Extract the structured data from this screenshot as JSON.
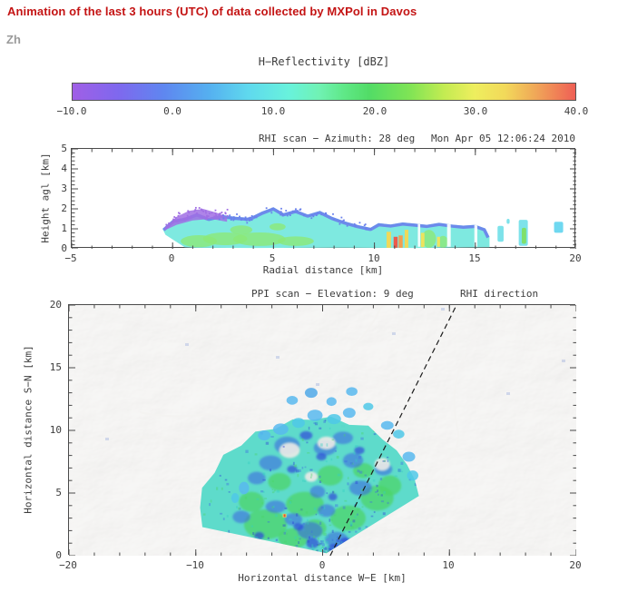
{
  "header": {
    "title": "Animation of the last 3 hours (UTC) of data collected by MXPol in Davos",
    "color": "#c41414"
  },
  "field_label": "Zh",
  "colorbar": {
    "title": "H−Reflectivity [dBZ]",
    "tick_labels": [
      "−10.0",
      "0.0",
      "10.0",
      "20.0",
      "30.0",
      "40.0"
    ],
    "min_dbz": -10,
    "max_dbz": 40,
    "stops": [
      [
        "0%",
        "#A05FE6"
      ],
      [
        "9%",
        "#7F68EE"
      ],
      [
        "18%",
        "#5F86F0"
      ],
      [
        "27%",
        "#55AFF0"
      ],
      [
        "35%",
        "#5FD9EE"
      ],
      [
        "43%",
        "#68F2DC"
      ],
      [
        "49%",
        "#70F2B4"
      ],
      [
        "54%",
        "#5FE887"
      ],
      [
        "59%",
        "#52DC66"
      ],
      [
        "67%",
        "#7FE455"
      ],
      [
        "74%",
        "#C4EC52"
      ],
      [
        "80%",
        "#EEEE5E"
      ],
      [
        "86%",
        "#F2D95A"
      ],
      [
        "92%",
        "#F0A858"
      ],
      [
        "100%",
        "#EF5F55"
      ]
    ]
  },
  "rhi": {
    "title": "RHI scan − Azimuth: 28 deg",
    "timestamp": "Mon Apr 05 12:06:24 2010",
    "xlabel": "Radial distance [km]",
    "ylabel": "Height agl [km]",
    "x_ticks": [
      "−5",
      "0",
      "5",
      "10",
      "15",
      "20"
    ],
    "y_ticks": [
      "5",
      "4",
      "3",
      "2",
      "1",
      "0"
    ]
  },
  "ppi": {
    "title": "PPI scan − Elevation: 9 deg",
    "annotation": "RHI direction",
    "xlabel": "Horizontal distance W−E [km]",
    "ylabel": "Horizontal distance S−N [km]",
    "x_ticks": [
      "−20",
      "−10",
      "0",
      "10",
      "20"
    ],
    "y_ticks": [
      "20",
      "15",
      "10",
      "5",
      "0"
    ]
  },
  "chart_data": [
    {
      "type": "heatmap",
      "subtype": "radar_rhi",
      "title": "RHI scan − Azimuth: 28 deg",
      "timestamp": "Mon Apr 05 12:06:24 2010",
      "xlabel": "Radial distance [km]",
      "ylabel": "Height agl [km]",
      "xlim": [
        -5,
        20
      ],
      "ylim": [
        0,
        5
      ],
      "x_major_ticks": [
        -5,
        0,
        5,
        10,
        15,
        20
      ],
      "y_major_ticks": [
        0,
        1,
        2,
        3,
        4,
        5
      ],
      "colorbar": {
        "label": "H−Reflectivity [dBZ]",
        "range": [
          -10,
          40
        ],
        "ticks": [
          -10,
          0,
          10,
          20,
          30,
          40
        ]
      },
      "echo": {
        "colors": {
          "body": "#7EE9E0",
          "core": "#8CE878",
          "top_band": "#6A80EC",
          "weak": "#A06EE4"
        },
        "top_profile_km": [
          [
            -0.5,
            1.0
          ],
          [
            0.0,
            1.45
          ],
          [
            0.6,
            1.55
          ],
          [
            1.2,
            1.78
          ],
          [
            1.8,
            1.55
          ],
          [
            2.4,
            1.7
          ],
          [
            3.1,
            1.6
          ],
          [
            3.8,
            1.55
          ],
          [
            4.4,
            1.85
          ],
          [
            5.0,
            2.08
          ],
          [
            5.5,
            1.78
          ],
          [
            6.1,
            1.95
          ],
          [
            6.7,
            1.72
          ],
          [
            7.3,
            1.9
          ],
          [
            7.9,
            1.6
          ],
          [
            8.5,
            1.38
          ],
          [
            9.2,
            1.18
          ],
          [
            9.8,
            1.05
          ],
          [
            10.2,
            1.28
          ],
          [
            10.8,
            1.22
          ],
          [
            11.4,
            1.32
          ],
          [
            12.0,
            1.26
          ],
          [
            12.6,
            1.2
          ],
          [
            13.2,
            1.3
          ],
          [
            13.8,
            1.22
          ],
          [
            14.4,
            1.16
          ],
          [
            15.0,
            1.2
          ],
          [
            15.5,
            1.02
          ],
          [
            15.7,
            0.6
          ]
        ],
        "bottom_profile_km": [
          [
            15.7,
            0.08
          ],
          [
            12.0,
            0.04
          ],
          [
            8.0,
            0.06
          ],
          [
            4.0,
            0.04
          ],
          [
            1.2,
            0.05
          ],
          [
            0.6,
            0.08
          ],
          [
            -0.35,
            0.7
          ]
        ],
        "green_cores": [
          [
            1.3,
            0.38,
            0.9,
            0.3
          ],
          [
            2.6,
            0.5,
            1.1,
            0.32
          ],
          [
            4.3,
            0.48,
            1.3,
            0.34
          ],
          [
            6.1,
            0.38,
            0.9,
            0.24
          ],
          [
            3.4,
            0.95,
            0.55,
            0.22
          ],
          [
            5.2,
            1.1,
            0.4,
            0.18
          ],
          [
            12.7,
            0.5,
            0.35,
            0.45
          ],
          [
            13.4,
            0.35,
            0.25,
            0.3
          ]
        ],
        "purple_region": [
          [
            -0.4,
            1.05
          ],
          [
            0.2,
            1.6
          ],
          [
            0.8,
            1.9
          ],
          [
            1.5,
            2.0
          ],
          [
            2.2,
            1.8
          ],
          [
            2.7,
            1.55
          ],
          [
            2.7,
            1.35
          ],
          [
            1.9,
            1.5
          ],
          [
            1.0,
            1.42
          ],
          [
            0.2,
            1.2
          ],
          [
            -0.4,
            0.92
          ]
        ],
        "streaks": [
          [
            10.6,
            0.05,
            0.22,
            0.8,
            "#EFD95A"
          ],
          [
            10.95,
            0.05,
            0.2,
            0.55,
            "#EE5A4A"
          ],
          [
            11.2,
            0.05,
            0.2,
            0.62,
            "#F29E50"
          ],
          [
            11.5,
            0.05,
            0.18,
            0.9,
            "#EFD95A"
          ],
          [
            12.3,
            0.08,
            0.18,
            0.72,
            "#EDE35E"
          ],
          [
            13.1,
            0.1,
            0.15,
            0.5,
            "#EDE35E"
          ]
        ],
        "gaps": [
          [
            12.15,
            0.12
          ],
          [
            13.6,
            0.18
          ],
          [
            14.95,
            0.15
          ]
        ],
        "isolated_cells": [
          [
            16.1,
            0.35,
            0.3,
            1.15,
            "#7DE2EA"
          ],
          [
            16.55,
            1.25,
            0.15,
            1.5,
            "#7DE2EA"
          ],
          [
            17.15,
            0.15,
            0.45,
            1.45,
            "#7DE2EA"
          ],
          [
            17.3,
            0.25,
            0.22,
            1.05,
            "#7FE06A"
          ],
          [
            18.9,
            0.8,
            0.45,
            1.35,
            "#6FD8F0"
          ]
        ]
      }
    },
    {
      "type": "heatmap",
      "subtype": "radar_ppi_over_terrain_map",
      "title": "PPI scan − Elevation: 9 deg",
      "annotation": "RHI direction",
      "xlabel": "Horizontal distance W−E [km]",
      "ylabel": "Horizontal distance S−N [km]",
      "xlim": [
        -20,
        20
      ],
      "ylim": [
        0,
        20
      ],
      "x_major_ticks": [
        -20,
        -10,
        0,
        10,
        20
      ],
      "y_major_ticks": [
        0,
        5,
        10,
        15,
        20
      ],
      "rhi_azimuth_deg": 28,
      "rhi_line_km": [
        [
          0.6,
          0
        ],
        [
          10.56,
          20
        ]
      ],
      "colors": {
        "base": "#55D9C8",
        "moderate": "#4CD468",
        "weak": "#3D6BE0",
        "very_weak": "#2B3FD8"
      },
      "sector": {
        "apex_km": [
          0.3,
          0.2
        ],
        "az_min_deg": -78,
        "az_max_deg": 58,
        "profile": [
          [
            -78,
            10.0
          ],
          [
            -70,
            10.6
          ],
          [
            -62,
            11.1
          ],
          [
            -54,
            10.9
          ],
          [
            -46,
            11.3
          ],
          [
            -38,
            10.9
          ],
          [
            -30,
            11.2
          ],
          [
            -22,
            10.7
          ],
          [
            -14,
            11.0
          ],
          [
            -6,
            10.7
          ],
          [
            2,
            10.9
          ],
          [
            10,
            10.4
          ],
          [
            18,
            10.7
          ],
          [
            26,
            10.1
          ],
          [
            34,
            9.9
          ],
          [
            42,
            9.5
          ],
          [
            50,
            9.1
          ],
          [
            58,
            8.6
          ]
        ]
      },
      "green_blobs": [
        [
          -4.5,
          2.5,
          1.7,
          1.2
        ],
        [
          -2.3,
          1.4,
          1.2,
          0.8
        ],
        [
          -5.6,
          4.3,
          1.0,
          0.8
        ],
        [
          -1.4,
          4.1,
          1.5,
          1.0
        ],
        [
          2.0,
          3.0,
          1.4,
          1.0
        ],
        [
          4.3,
          4.6,
          1.3,
          1.0
        ],
        [
          0.6,
          6.4,
          1.0,
          0.8
        ],
        [
          -3.4,
          5.9,
          0.9,
          0.7
        ],
        [
          5.3,
          5.6,
          0.9,
          0.8
        ],
        [
          -0.6,
          2.2,
          0.9,
          0.7
        ],
        [
          3.2,
          6.8,
          0.8,
          0.6
        ]
      ],
      "blue_blobs": [
        [
          -1.0,
          2.0,
          1.0,
          0.7
        ],
        [
          -2.3,
          2.9,
          0.7,
          0.5
        ],
        [
          1.1,
          1.3,
          0.9,
          0.6
        ],
        [
          -0.4,
          5.1,
          0.6,
          0.5
        ],
        [
          3.0,
          5.4,
          0.9,
          0.6
        ],
        [
          -4.1,
          7.4,
          0.9,
          0.6
        ],
        [
          -6.4,
          3.1,
          0.7,
          0.5
        ],
        [
          2.4,
          7.6,
          0.8,
          0.6
        ],
        [
          0.2,
          8.6,
          0.9,
          0.6
        ],
        [
          -2.8,
          8.8,
          1.0,
          0.7
        ],
        [
          1.6,
          9.4,
          0.8,
          0.5
        ],
        [
          -5.2,
          6.2,
          0.7,
          0.5
        ],
        [
          4.8,
          6.9,
          0.7,
          0.5
        ],
        [
          -3.7,
          3.9,
          0.8,
          0.5
        ],
        [
          0.3,
          3.6,
          0.7,
          0.5
        ]
      ],
      "deep_blue_blobs": [
        [
          -0.8,
          1.0,
          0.5,
          0.4
        ],
        [
          -1.9,
          2.3,
          0.4,
          0.3
        ],
        [
          1.8,
          1.1,
          0.45,
          0.35
        ],
        [
          -5.0,
          1.6,
          0.4,
          0.3
        ],
        [
          0.8,
          4.7,
          0.35,
          0.3
        ],
        [
          -0.1,
          7.9,
          0.4,
          0.3
        ],
        [
          -2.4,
          6.9,
          0.4,
          0.3
        ],
        [
          2.9,
          8.4,
          0.4,
          0.3
        ],
        [
          -1.3,
          9.6,
          0.5,
          0.35
        ],
        [
          0.9,
          0.6,
          0.5,
          0.35
        ]
      ],
      "white_gaps": [
        [
          -2.6,
          8.4,
          0.8,
          0.6
        ],
        [
          0.3,
          9.0,
          0.7,
          0.5
        ],
        [
          4.7,
          7.3,
          0.6,
          0.5
        ],
        [
          -0.9,
          6.3,
          0.5,
          0.4
        ]
      ],
      "edge_cells": [
        [
          -4.6,
          9.6,
          0.5,
          0.4,
          "#58B9EE"
        ],
        [
          -3.3,
          10.1,
          0.6,
          0.45,
          "#58B9EE"
        ],
        [
          -1.9,
          10.6,
          0.5,
          0.4,
          "#4FC8E8"
        ],
        [
          -0.6,
          11.2,
          0.6,
          0.45,
          "#58B9EE"
        ],
        [
          0.9,
          10.9,
          0.55,
          0.4,
          "#4FC8E8"
        ],
        [
          2.1,
          11.4,
          0.5,
          0.4,
          "#58B9EE"
        ],
        [
          -2.4,
          12.4,
          0.45,
          0.35,
          "#58B9EE"
        ],
        [
          -0.9,
          13.0,
          0.5,
          0.4,
          "#4FA8E8"
        ],
        [
          0.7,
          12.3,
          0.4,
          0.35,
          "#58B9EE"
        ],
        [
          2.3,
          13.1,
          0.45,
          0.35,
          "#58B9EE"
        ],
        [
          3.6,
          11.9,
          0.4,
          0.3,
          "#4FC8E8"
        ],
        [
          5.1,
          10.4,
          0.5,
          0.35,
          "#58B9EE"
        ],
        [
          6.0,
          9.7,
          0.45,
          0.35,
          "#4FC8E8"
        ],
        [
          6.8,
          7.9,
          0.5,
          0.4,
          "#58B9EE"
        ],
        [
          7.1,
          6.4,
          0.45,
          0.4,
          "#4FC8E8"
        ],
        [
          -6.2,
          5.4,
          0.4,
          0.5,
          "#58B9EE"
        ],
        [
          -6.9,
          4.6,
          0.3,
          0.4,
          "#4FC8E8"
        ]
      ],
      "hot_spot": [
        -3.0,
        3.2
      ]
    }
  ]
}
